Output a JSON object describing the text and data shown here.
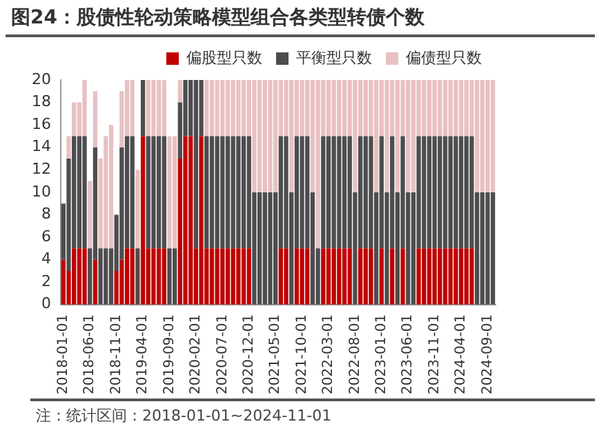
{
  "chart_data": {
    "type": "bar",
    "title": "图24：股债性轮动策略模型组合各类型转债个数",
    "stacked": true,
    "legend": "top",
    "grid": false,
    "categories": [
      "2018-01-01",
      null,
      null,
      null,
      null,
      "2018-06-01",
      null,
      null,
      null,
      null,
      "2018-11-01",
      null,
      null,
      null,
      null,
      "2019-04-01",
      null,
      null,
      null,
      null,
      "2019-09-01",
      null,
      null,
      null,
      null,
      "2020-02-01",
      null,
      null,
      null,
      null,
      "2020-07-01",
      null,
      null,
      null,
      null,
      "2020-12-01",
      null,
      null,
      null,
      null,
      "2021-05-01",
      null,
      null,
      null,
      null,
      "2021-10-01",
      null,
      null,
      null,
      null,
      "2022-03-01",
      null,
      null,
      null,
      null,
      "2022-08-01",
      null,
      null,
      null,
      null,
      "2023-01-01",
      null,
      null,
      null,
      null,
      "2023-06-01",
      null,
      null,
      null,
      null,
      "2023-11-01",
      null,
      null,
      null,
      null,
      "2024-04-01",
      null,
      null,
      null,
      null,
      "2024-09-01",
      null
    ],
    "ylim": [
      0,
      20
    ],
    "yticks": [
      0,
      2,
      4,
      6,
      8,
      10,
      12,
      14,
      16,
      18,
      20
    ],
    "series": [
      {
        "name": "偏股型只数",
        "color": "#c00000",
        "values": [
          4,
          3,
          5,
          5,
          5,
          0,
          4,
          0,
          0,
          0,
          3,
          4,
          5,
          5,
          0,
          15,
          5,
          5,
          5,
          5,
          0,
          0,
          13,
          15,
          15,
          5,
          15,
          5,
          5,
          5,
          5,
          5,
          5,
          5,
          5,
          5,
          0,
          0,
          0,
          0,
          0,
          5,
          5,
          0,
          5,
          5,
          5,
          0,
          0,
          5,
          5,
          5,
          5,
          5,
          5,
          0,
          5,
          5,
          5,
          0,
          5,
          0,
          5,
          0,
          5,
          0,
          0,
          5,
          5,
          5,
          5,
          5,
          5,
          5,
          5,
          5,
          5,
          5,
          0,
          0,
          0,
          0
        ]
      },
      {
        "name": "平衡型只数",
        "color": "#4d4d4f",
        "values": [
          5,
          10,
          10,
          10,
          10,
          5,
          10,
          5,
          5,
          5,
          5,
          10,
          10,
          10,
          5,
          5,
          10,
          10,
          10,
          10,
          5,
          5,
          5,
          5,
          5,
          15,
          5,
          10,
          10,
          10,
          10,
          10,
          10,
          10,
          10,
          10,
          10,
          10,
          10,
          10,
          10,
          10,
          10,
          10,
          10,
          10,
          10,
          10,
          5,
          10,
          10,
          10,
          10,
          10,
          10,
          10,
          10,
          10,
          10,
          10,
          10,
          10,
          10,
          10,
          10,
          10,
          10,
          10,
          10,
          10,
          10,
          10,
          10,
          10,
          10,
          10,
          10,
          10,
          10,
          10,
          10,
          10
        ]
      },
      {
        "name": "偏债型只数",
        "color": "#e8c1c2",
        "values": [
          0,
          2,
          3,
          3,
          5,
          6,
          5,
          8,
          10,
          11,
          0,
          5,
          5,
          5,
          7,
          0,
          5,
          5,
          5,
          5,
          10,
          10,
          2,
          0,
          0,
          0,
          0,
          5,
          5,
          5,
          5,
          5,
          5,
          5,
          5,
          5,
          10,
          10,
          10,
          10,
          10,
          5,
          5,
          10,
          5,
          5,
          5,
          10,
          15,
          5,
          5,
          5,
          5,
          5,
          5,
          10,
          5,
          5,
          5,
          10,
          5,
          10,
          5,
          10,
          5,
          10,
          10,
          5,
          5,
          5,
          5,
          5,
          5,
          5,
          5,
          5,
          5,
          5,
          10,
          10,
          10,
          10
        ]
      }
    ],
    "annotations": [
      "注：统计区间：2018-01-01~2024-11-01"
    ]
  }
}
